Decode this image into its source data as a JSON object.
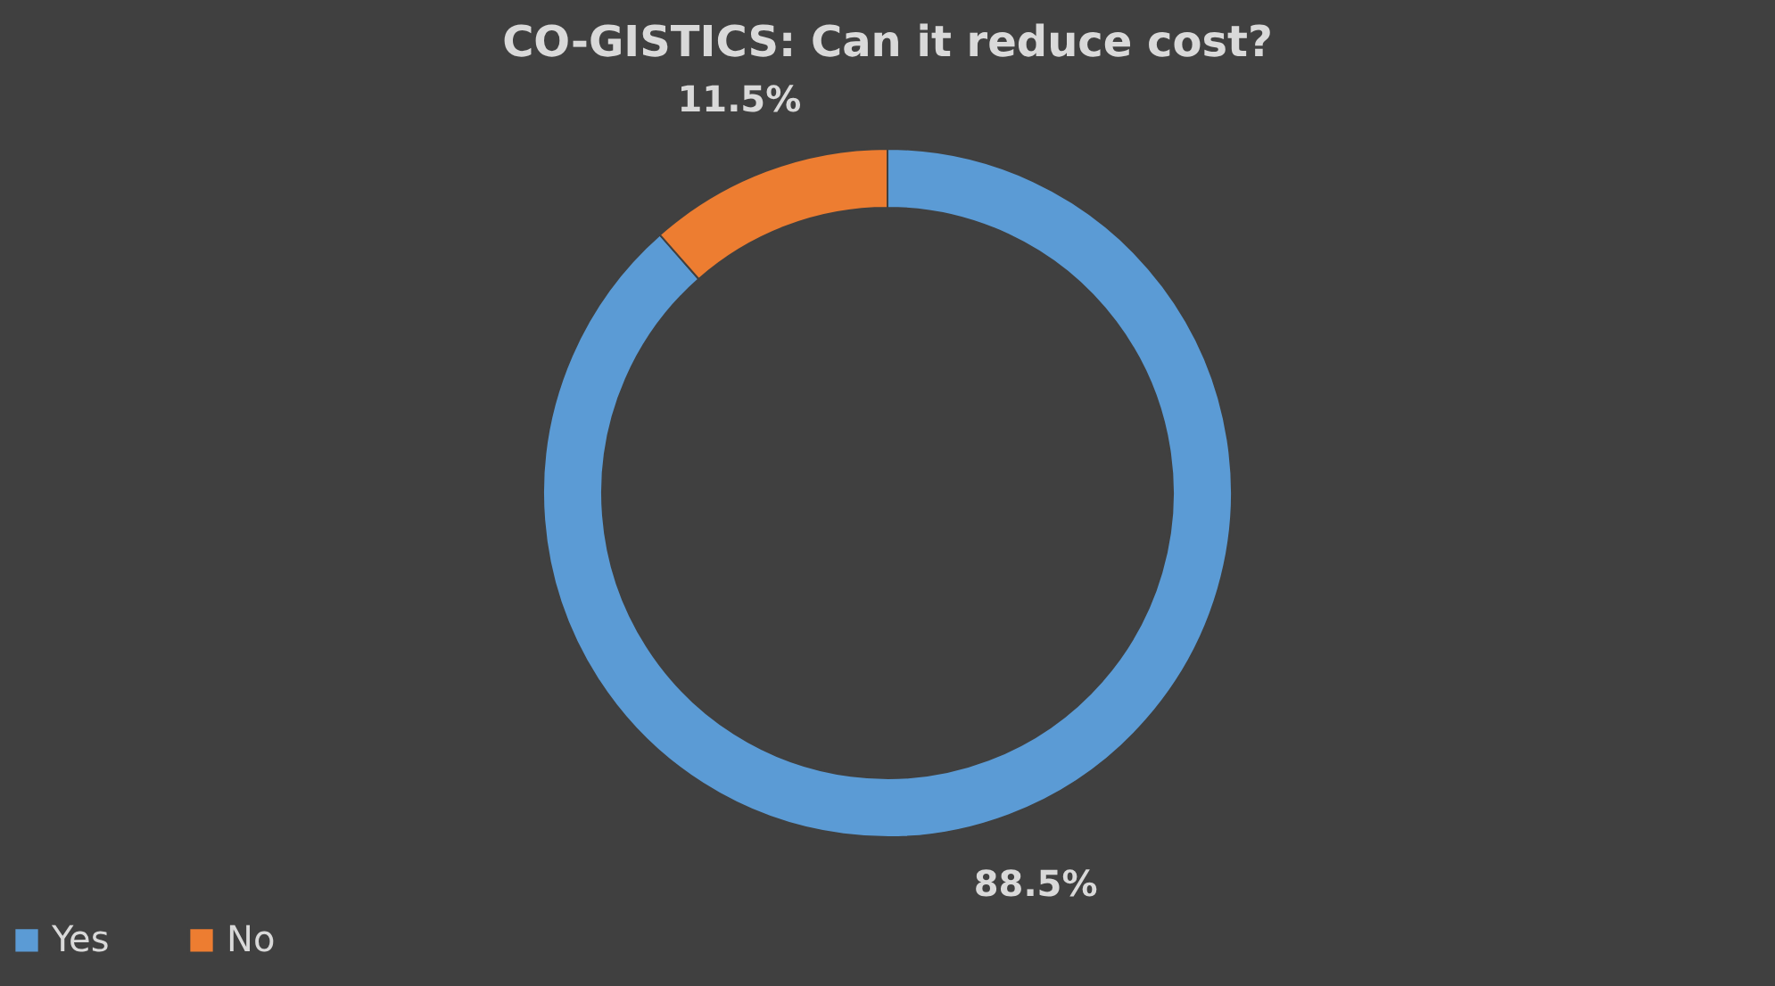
{
  "chart_data": {
    "type": "donut",
    "title": "CO-GISTICS: Can it reduce cost?",
    "categories": [
      "Yes",
      "No"
    ],
    "values": [
      88.5,
      11.5
    ],
    "colors": [
      "#5b9bd5",
      "#ed7d31"
    ],
    "value_labels": [
      "88.5%",
      "11.5%"
    ],
    "legend": "bottom"
  }
}
